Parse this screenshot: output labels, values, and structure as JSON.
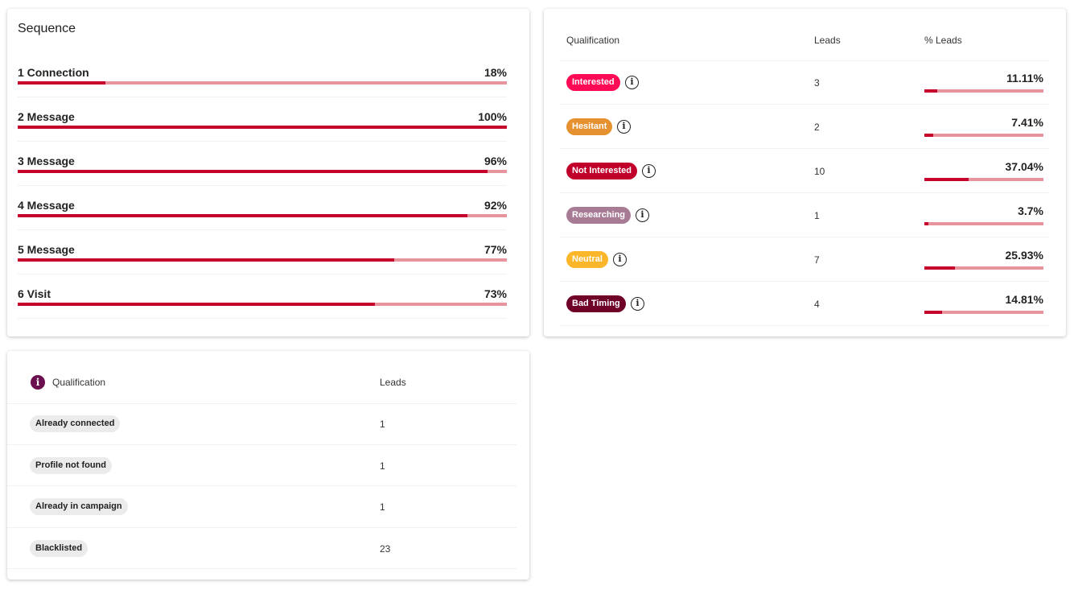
{
  "sequence": {
    "title": "Sequence",
    "steps": [
      {
        "label": "1 Connection",
        "percent_label": "18%",
        "percent": 18
      },
      {
        "label": "2 Message",
        "percent_label": "100%",
        "percent": 100
      },
      {
        "label": "3 Message",
        "percent_label": "96%",
        "percent": 96
      },
      {
        "label": "4 Message",
        "percent_label": "92%",
        "percent": 92
      },
      {
        "label": "5 Message",
        "percent_label": "77%",
        "percent": 77
      },
      {
        "label": "6 Visit",
        "percent_label": "73%",
        "percent": 73
      }
    ]
  },
  "qualification": {
    "headers": {
      "qualification": "Qualification",
      "leads": "Leads",
      "pct": "% Leads"
    },
    "rows": [
      {
        "label": "Interested",
        "color": "#ff0a54",
        "leads": "3",
        "pct_label": "11.11%",
        "pct": 11.11
      },
      {
        "label": "Hesitant",
        "color": "#e6912f",
        "leads": "2",
        "pct_label": "7.41%",
        "pct": 7.41
      },
      {
        "label": "Not Interested",
        "color": "#c0002b",
        "leads": "10",
        "pct_label": "37.04%",
        "pct": 37.04
      },
      {
        "label": "Researching",
        "color": "#a87b95",
        "leads": "1",
        "pct_label": "3.7%",
        "pct": 3.7
      },
      {
        "label": "Neutral",
        "color": "#fbb62a",
        "leads": "7",
        "pct_label": "25.93%",
        "pct": 25.93
      },
      {
        "label": "Bad Timing",
        "color": "#6f0028",
        "leads": "4",
        "pct_label": "14.81%",
        "pct": 14.81
      }
    ]
  },
  "skipped": {
    "headers": {
      "qualification": "Qualification",
      "leads": "Leads"
    },
    "rows": [
      {
        "label": "Already connected",
        "leads": "1"
      },
      {
        "label": "Profile not found",
        "leads": "1"
      },
      {
        "label": "Already in campaign",
        "leads": "1"
      },
      {
        "label": "Blacklisted",
        "leads": "23"
      }
    ]
  },
  "colors": {
    "bar_fill": "#c4002b",
    "bar_track": "#e8949f",
    "info_accent": "#6b0f4e"
  }
}
